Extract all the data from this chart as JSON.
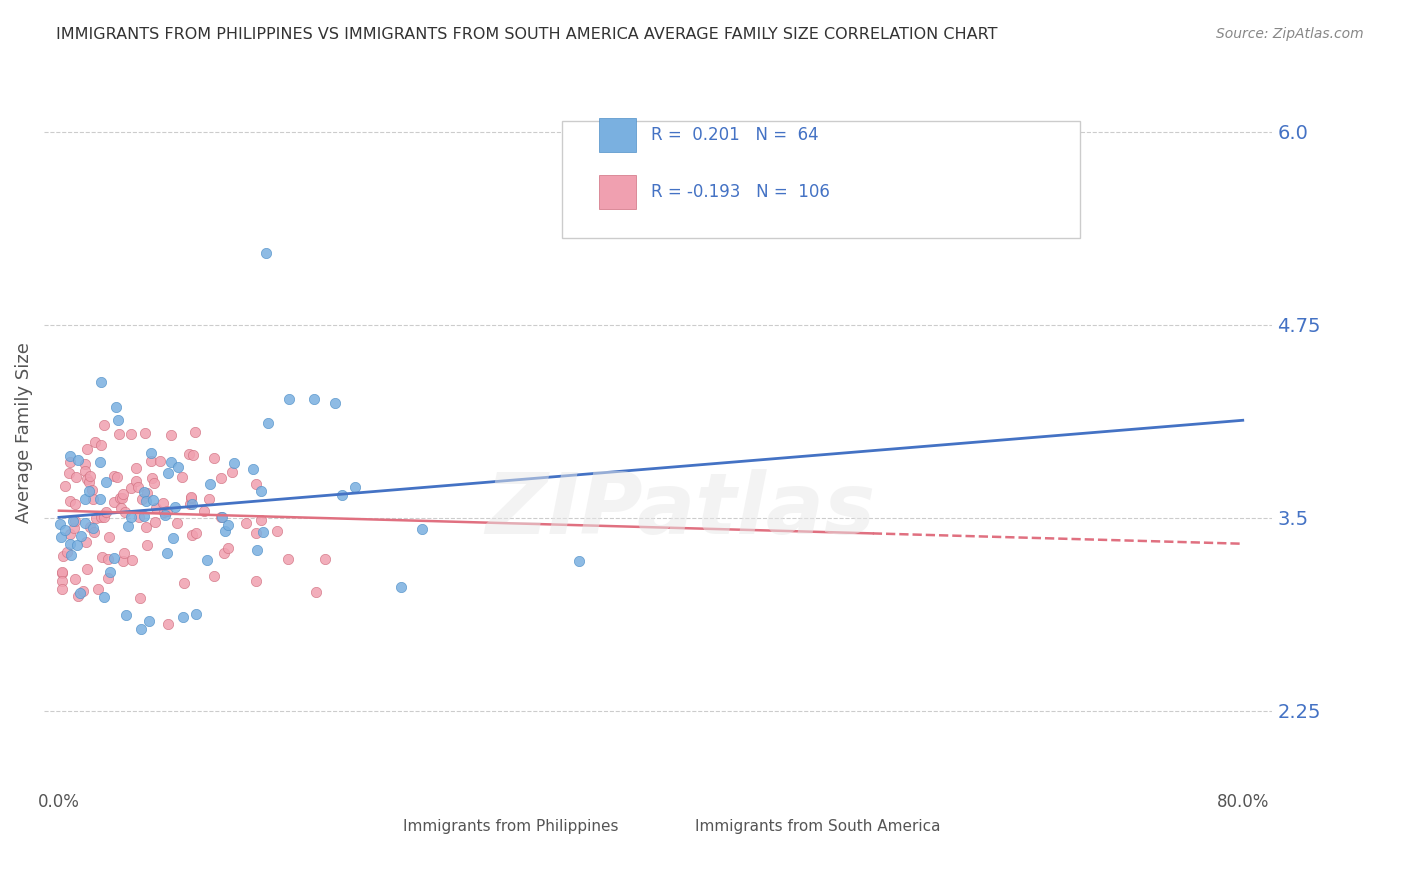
{
  "title": "IMMIGRANTS FROM PHILIPPINES VS IMMIGRANTS FROM SOUTH AMERICA AVERAGE FAMILY SIZE CORRELATION CHART",
  "source": "Source: ZipAtlas.com",
  "ylabel": "Average Family Size",
  "yticks": [
    2.25,
    3.5,
    4.75,
    6.0
  ],
  "ylim": [
    1.75,
    6.35
  ],
  "xlim": [
    -0.01,
    0.82
  ],
  "watermark": "ZIPatlas",
  "series1_color": "#7ab0e0",
  "series1_edge": "#5090c8",
  "series2_color": "#f0a0b0",
  "series2_edge": "#d07080",
  "trend1_color": "#4472c4",
  "trend2_color": "#e07080",
  "legend_r1": "R =  0.201   N =  64",
  "legend_r2": "R = -0.193   N =  106",
  "legend_color": "#4472c4",
  "background_color": "#ffffff",
  "grid_color": "#cccccc",
  "title_color": "#333333",
  "right_ytick_color": "#4472c4",
  "bottom_label1": "Immigrants from Philippines",
  "bottom_label2": "Immigrants from South America"
}
